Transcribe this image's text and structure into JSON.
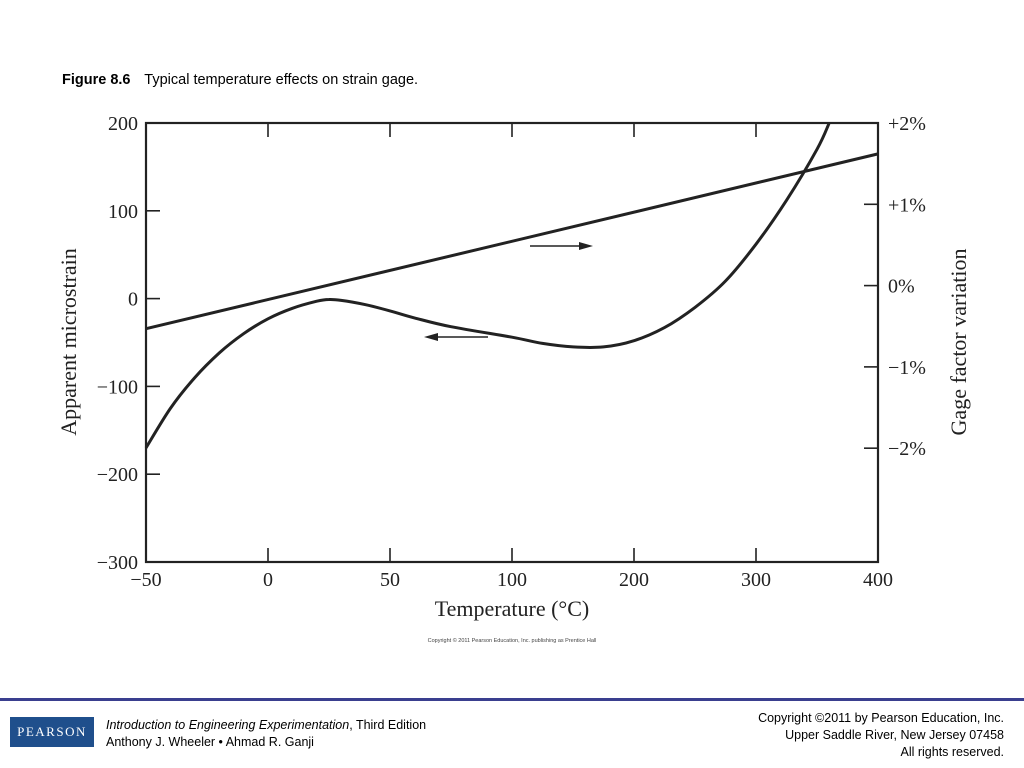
{
  "caption": {
    "figure_number": "Figure 8.6",
    "title": "Typical temperature effects on strain gage."
  },
  "chart_data": {
    "type": "line",
    "title": "",
    "xlabel": "Temperature (°C)",
    "ylabel": "Apparent microstrain",
    "y2label": "Gage factor variation",
    "x_ticks": [
      "−50",
      "0",
      "50",
      "100",
      "200",
      "300",
      "400"
    ],
    "x_axis_note": "non-uniform temperature scale (−50 to 100 in steps of 50, then 100 to 400 in steps of 100)",
    "y_ticks": [
      200,
      100,
      0,
      -100,
      -200,
      -300
    ],
    "y_tick_labels": [
      "200",
      "100",
      "0",
      "−100",
      "−200",
      "−300"
    ],
    "y2_ticks": [
      2,
      1,
      0,
      -1,
      -2
    ],
    "y2_tick_labels": [
      "+2%",
      "+1%",
      "0%",
      "−1%",
      "−2%"
    ],
    "ylim": [
      -300,
      200
    ],
    "y2lim": [
      -3.4,
      2
    ],
    "grid": false,
    "series": [
      {
        "axis": "left",
        "x": [
          -50,
          -40,
          -30,
          -20,
          -10,
          0,
          10,
          20,
          25,
          30,
          40,
          50,
          60,
          75,
          100,
          125,
          150,
          175,
          200,
          225,
          250,
          275,
          300,
          325,
          350,
          360
        ],
        "y": [
          -170,
          -125,
          -90,
          -62,
          -40,
          -23,
          -11,
          -3,
          -1,
          -2,
          -7,
          -14,
          -22,
          -32,
          -44,
          -51,
          -55,
          -55,
          -48,
          -33,
          -10,
          20,
          62,
          112,
          170,
          200
        ]
      },
      {
        "axis": "right",
        "x": [
          -50,
          400
        ],
        "y": [
          -0.53,
          1.62
        ]
      }
    ]
  },
  "chart_copyright": "Copyright © 2011 Pearson Education, Inc. publishing as Prentice Hall",
  "footer": {
    "logo_text": "PEARSON",
    "book_title": "Introduction to Engineering Experimentation",
    "edition": ", Third Edition",
    "authors": "Anthony J. Wheeler • Ahmad R. Ganji",
    "copyright_line1": "Copyright ©2011 by Pearson Education, Inc.",
    "copyright_line2": "Upper Saddle River, New Jersey 07458",
    "copyright_line3": "All rights reserved.",
    "rule_color": "#3a3f8f",
    "logo_color": "#1f4f8c"
  }
}
